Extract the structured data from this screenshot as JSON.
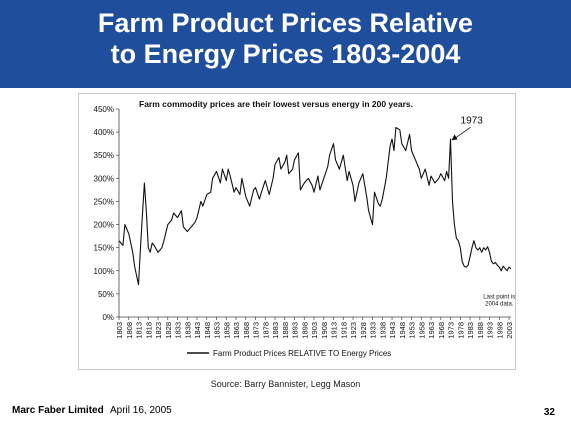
{
  "slide": {
    "title_line1": "Farm Product Prices Relative",
    "title_line2": "to Energy Prices 1803-2004",
    "source": "Source: Barry Bannister, Legg Mason",
    "company": "Marc Faber Limited",
    "date": "April 16, 2005",
    "page_number": "32",
    "colors": {
      "banner": "#1f4e9c",
      "title_text": "#ffffff",
      "line": "#111111"
    }
  },
  "chart_data": {
    "type": "line",
    "title": "Farm commodity prices are their lowest versus energy in 200 years.",
    "xlabel": "",
    "ylabel": "",
    "xlim": [
      1803,
      2004
    ],
    "ylim": [
      0,
      450
    ],
    "y_ticks": [
      "0%",
      "50%",
      "100%",
      "150%",
      "200%",
      "250%",
      "300%",
      "350%",
      "400%",
      "450%"
    ],
    "x_ticks": [
      "1803",
      "1808",
      "1813",
      "1818",
      "1823",
      "1828",
      "1833",
      "1838",
      "1843",
      "1848",
      "1853",
      "1858",
      "1863",
      "1868",
      "1873",
      "1878",
      "1883",
      "1888",
      "1893",
      "1898",
      "1903",
      "1908",
      "1913",
      "1918",
      "1923",
      "1928",
      "1933",
      "1938",
      "1943",
      "1948",
      "1953",
      "1958",
      "1963",
      "1968",
      "1973",
      "1978",
      "1983",
      "1988",
      "1993",
      "1998",
      "2003"
    ],
    "grid": false,
    "legend": {
      "position": "bottom-left",
      "entries": [
        "Farm Product Prices RELATIVE TO Energy Prices"
      ]
    },
    "annotations": [
      {
        "text": "1973",
        "x": 1973,
        "y": 380
      },
      {
        "text": "Last point is",
        "x": 1998,
        "y": 40
      },
      {
        "text": "2004 data.",
        "x": 1998,
        "y": 25
      }
    ],
    "series": [
      {
        "name": "Farm Product Prices RELATIVE TO Energy Prices",
        "x": [
          1803,
          1805,
          1806,
          1808,
          1810,
          1811,
          1813,
          1814,
          1815,
          1816,
          1817,
          1818,
          1819,
          1820,
          1821,
          1823,
          1825,
          1826,
          1828,
          1830,
          1831,
          1833,
          1835,
          1836,
          1838,
          1840,
          1842,
          1843,
          1845,
          1846,
          1848,
          1850,
          1851,
          1853,
          1855,
          1856,
          1858,
          1859,
          1860,
          1862,
          1863,
          1865,
          1866,
          1868,
          1870,
          1872,
          1873,
          1875,
          1876,
          1878,
          1880,
          1882,
          1883,
          1885,
          1886,
          1888,
          1889,
          1890,
          1892,
          1893,
          1895,
          1896,
          1898,
          1900,
          1902,
          1903,
          1905,
          1906,
          1908,
          1910,
          1911,
          1913,
          1914,
          1916,
          1918,
          1920,
          1921,
          1923,
          1924,
          1926,
          1928,
          1930,
          1931,
          1933,
          1934,
          1936,
          1937,
          1938,
          1940,
          1942,
          1943,
          1944,
          1945,
          1947,
          1948,
          1950,
          1952,
          1953,
          1955,
          1957,
          1958,
          1960,
          1962,
          1963,
          1965,
          1967,
          1968,
          1970,
          1971,
          1972,
          1973,
          1974,
          1975,
          1976,
          1977,
          1978,
          1979,
          1980,
          1981,
          1982,
          1983,
          1984,
          1985,
          1986,
          1987,
          1988,
          1989,
          1990,
          1991,
          1992,
          1993,
          1994,
          1995,
          1996,
          1997,
          1998,
          1999,
          2000,
          2001,
          2002,
          2003,
          2004
        ],
        "values": [
          165,
          155,
          200,
          180,
          140,
          110,
          70,
          150,
          220,
          290,
          230,
          150,
          140,
          160,
          155,
          140,
          150,
          165,
          200,
          210,
          225,
          215,
          230,
          195,
          185,
          195,
          205,
          215,
          250,
          240,
          265,
          270,
          300,
          315,
          290,
          320,
          295,
          320,
          305,
          270,
          280,
          265,
          300,
          260,
          240,
          275,
          280,
          255,
          270,
          295,
          265,
          300,
          330,
          345,
          320,
          335,
          350,
          310,
          320,
          340,
          355,
          275,
          290,
          300,
          285,
          270,
          305,
          275,
          300,
          325,
          350,
          375,
          340,
          320,
          350,
          295,
          315,
          285,
          250,
          290,
          310,
          260,
          230,
          200,
          270,
          245,
          240,
          255,
          300,
          370,
          385,
          360,
          410,
          405,
          375,
          360,
          395,
          360,
          340,
          320,
          300,
          320,
          285,
          305,
          290,
          300,
          310,
          295,
          315,
          300,
          385,
          250,
          200,
          170,
          165,
          150,
          120,
          110,
          108,
          112,
          130,
          150,
          165,
          150,
          145,
          150,
          140,
          150,
          145,
          152,
          140,
          120,
          115,
          118,
          112,
          108,
          100,
          110,
          105,
          100,
          108,
          104
        ]
      }
    ]
  }
}
